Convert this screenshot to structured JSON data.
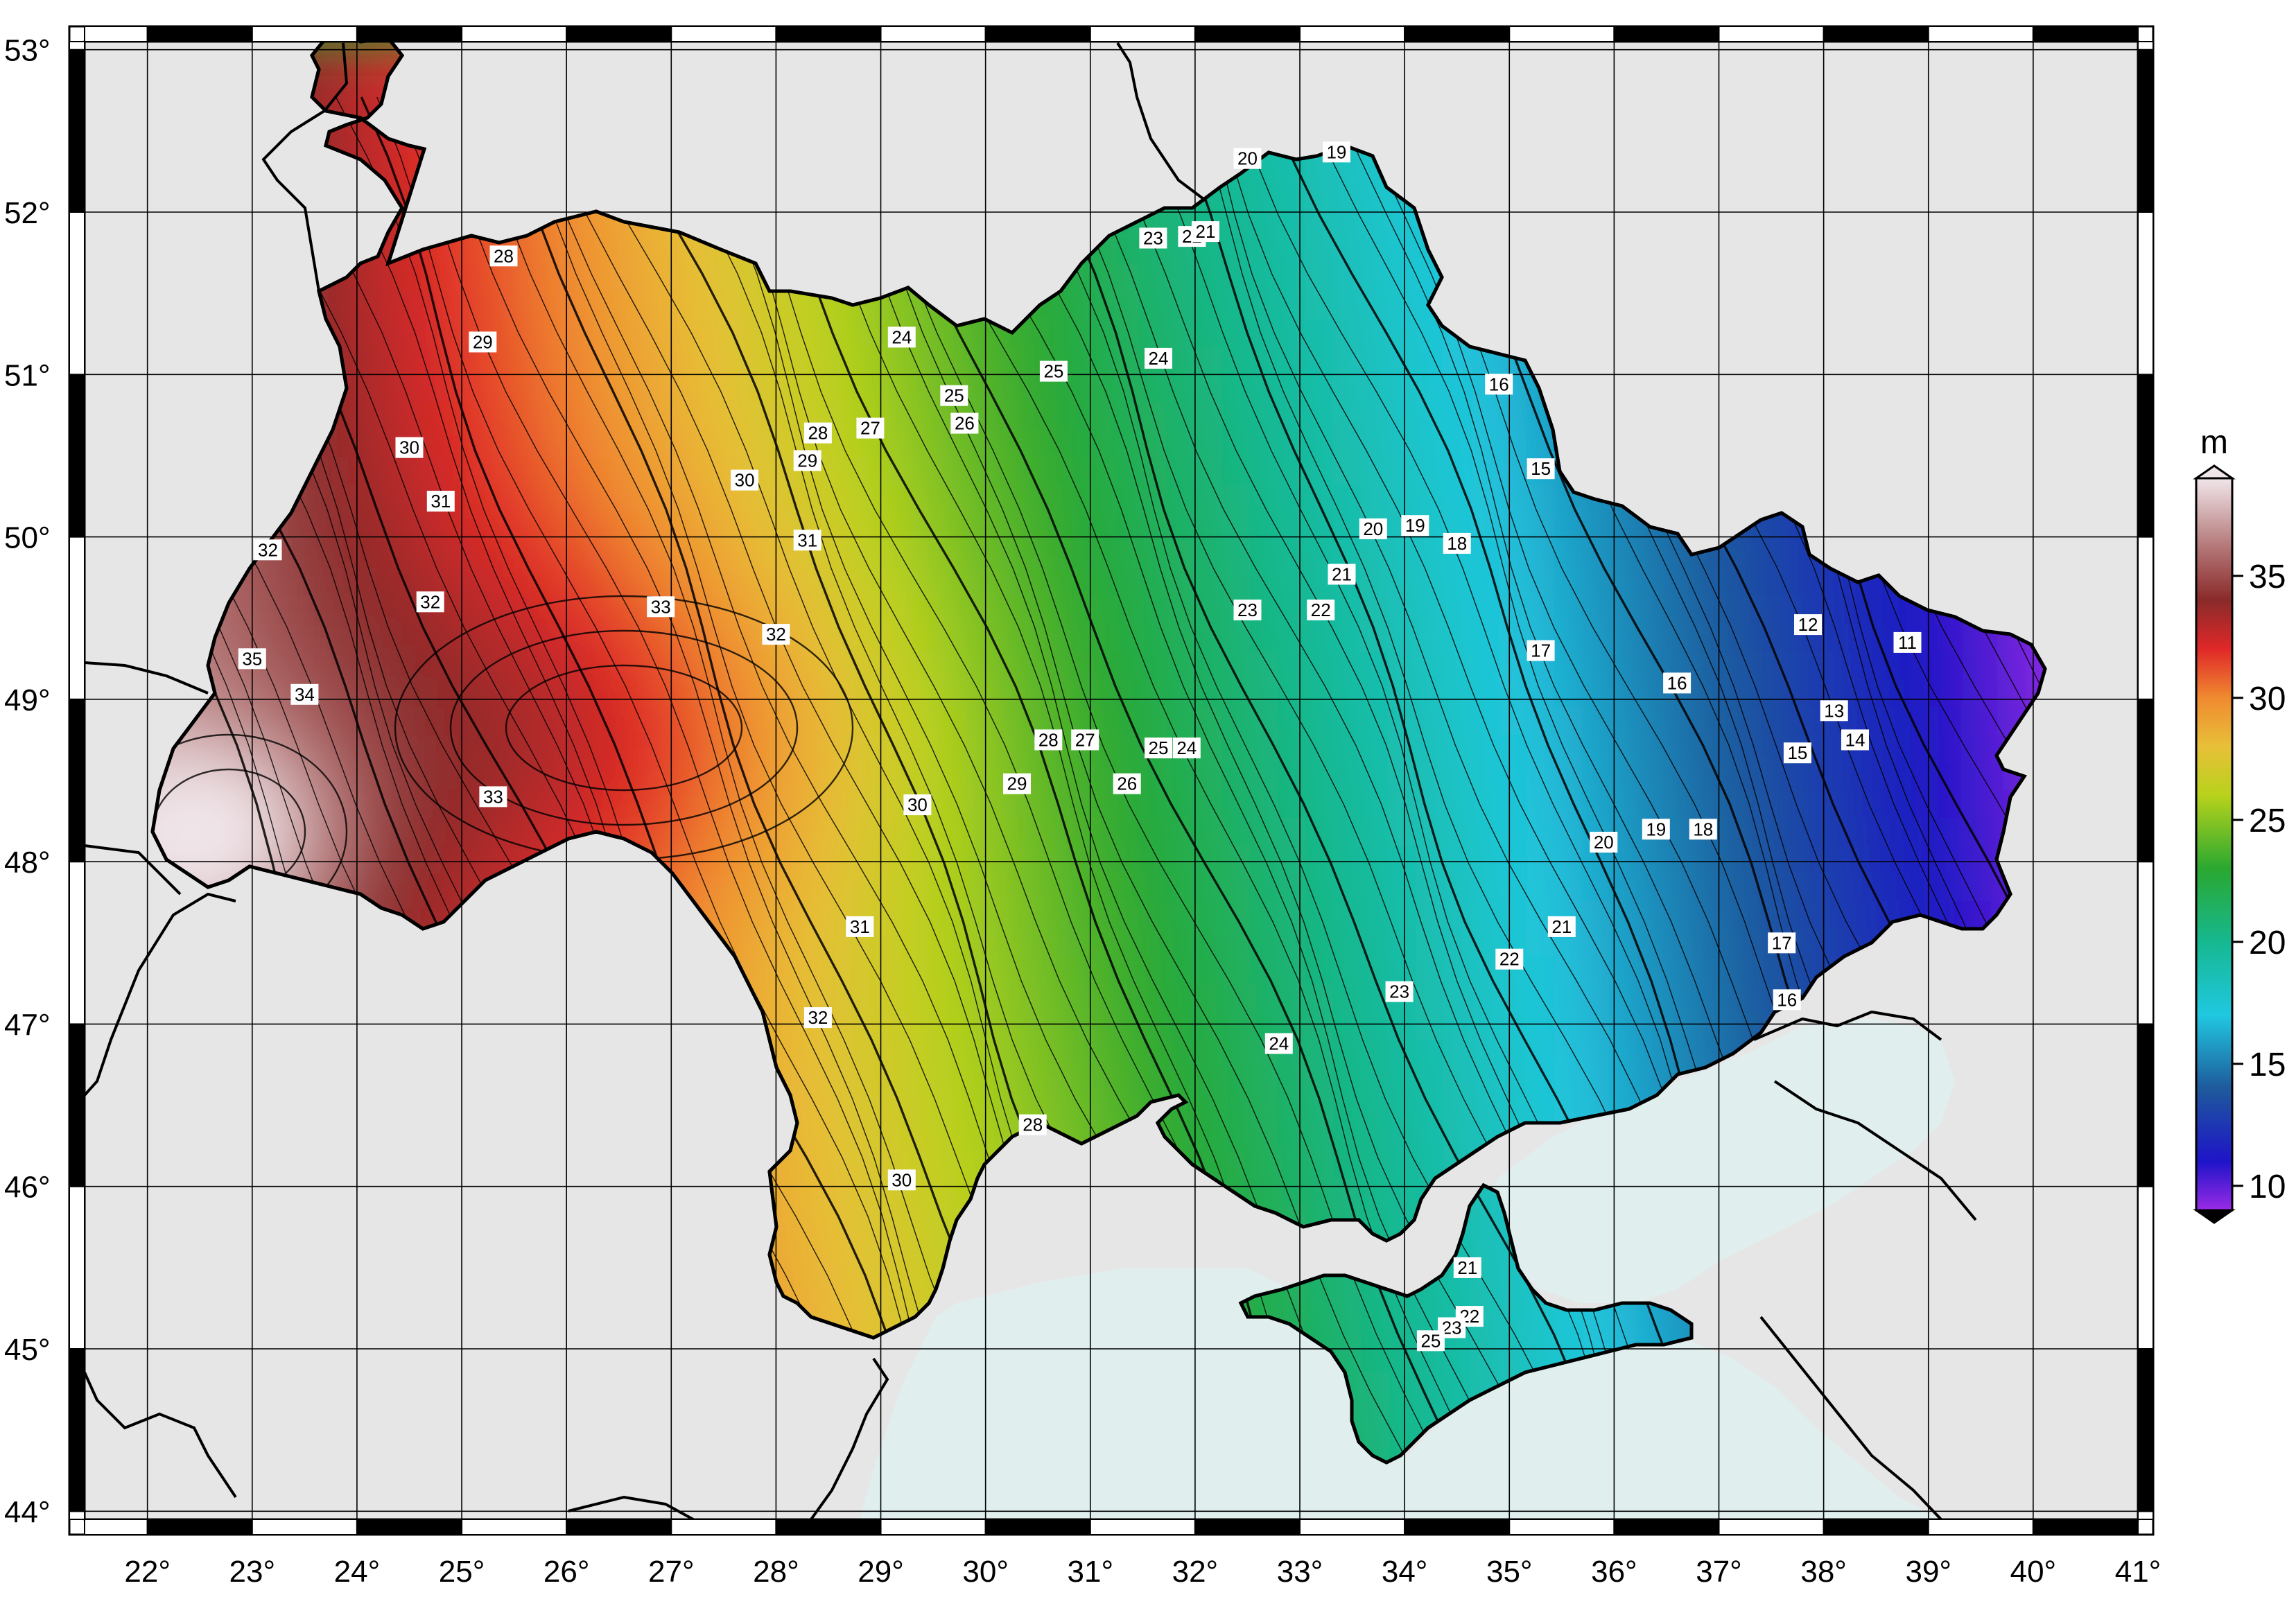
{
  "map": {
    "lon_range": [
      21.4,
      41.0
    ],
    "lat_range": [
      43.95,
      53.05
    ],
    "lon_ticks": [
      22,
      23,
      24,
      25,
      26,
      27,
      28,
      29,
      30,
      31,
      32,
      33,
      34,
      35,
      36,
      37,
      38,
      39,
      40,
      41
    ],
    "lat_ticks": [
      44,
      45,
      46,
      47,
      48,
      49,
      50,
      51,
      52,
      53
    ],
    "lon_tick_labels": [
      "22°",
      "23°",
      "24°",
      "25°",
      "26°",
      "27°",
      "28°",
      "29°",
      "30°",
      "31°",
      "32°",
      "33°",
      "34°",
      "35°",
      "36°",
      "37°",
      "38°",
      "39°",
      "40°",
      "41°"
    ],
    "lat_tick_labels": [
      "44°",
      "45°",
      "46°",
      "47°",
      "48°",
      "49°",
      "50°",
      "51°",
      "52°",
      "53°"
    ],
    "grid": true,
    "land_color": "#e6e6e6",
    "sea_color": "#e0eeee",
    "contour_labels": [
      {
        "text": "28",
        "lon": 25.4,
        "lat": 51.73
      },
      {
        "text": "29",
        "lon": 25.2,
        "lat": 51.2
      },
      {
        "text": "30",
        "lon": 24.5,
        "lat": 50.55
      },
      {
        "text": "31",
        "lon": 24.8,
        "lat": 50.22
      },
      {
        "text": "32",
        "lon": 23.15,
        "lat": 49.92
      },
      {
        "text": "32",
        "lon": 24.7,
        "lat": 49.6
      },
      {
        "text": "35",
        "lon": 23.0,
        "lat": 49.25
      },
      {
        "text": "34",
        "lon": 23.5,
        "lat": 49.03
      },
      {
        "text": "33",
        "lon": 25.3,
        "lat": 48.4
      },
      {
        "text": "33",
        "lon": 26.9,
        "lat": 49.57
      },
      {
        "text": "32",
        "lon": 28.0,
        "lat": 49.4
      },
      {
        "text": "31",
        "lon": 28.3,
        "lat": 49.98
      },
      {
        "text": "30",
        "lon": 27.7,
        "lat": 50.35
      },
      {
        "text": "29",
        "lon": 28.3,
        "lat": 50.47
      },
      {
        "text": "28",
        "lon": 28.4,
        "lat": 50.64
      },
      {
        "text": "27",
        "lon": 28.9,
        "lat": 50.67
      },
      {
        "text": "26",
        "lon": 29.8,
        "lat": 50.7
      },
      {
        "text": "25",
        "lon": 29.7,
        "lat": 50.87
      },
      {
        "text": "24",
        "lon": 29.2,
        "lat": 51.23
      },
      {
        "text": "25",
        "lon": 30.65,
        "lat": 51.02
      },
      {
        "text": "24",
        "lon": 31.65,
        "lat": 51.1
      },
      {
        "text": "23",
        "lon": 31.6,
        "lat": 51.84
      },
      {
        "text": "22",
        "lon": 31.97,
        "lat": 51.85
      },
      {
        "text": "21",
        "lon": 32.1,
        "lat": 51.88
      },
      {
        "text": "20",
        "lon": 32.5,
        "lat": 52.33
      },
      {
        "text": "19",
        "lon": 33.35,
        "lat": 52.37
      },
      {
        "text": "16",
        "lon": 34.9,
        "lat": 50.94
      },
      {
        "text": "15",
        "lon": 35.3,
        "lat": 50.42
      },
      {
        "text": "20",
        "lon": 33.7,
        "lat": 50.05
      },
      {
        "text": "19",
        "lon": 34.1,
        "lat": 50.07
      },
      {
        "text": "18",
        "lon": 34.5,
        "lat": 49.96
      },
      {
        "text": "21",
        "lon": 33.4,
        "lat": 49.77
      },
      {
        "text": "22",
        "lon": 33.2,
        "lat": 49.55
      },
      {
        "text": "23",
        "lon": 32.5,
        "lat": 49.55
      },
      {
        "text": "17",
        "lon": 35.3,
        "lat": 49.3
      },
      {
        "text": "16",
        "lon": 36.6,
        "lat": 49.1
      },
      {
        "text": "12",
        "lon": 37.85,
        "lat": 49.46
      },
      {
        "text": "11",
        "lon": 38.8,
        "lat": 49.35
      },
      {
        "text": "13",
        "lon": 38.1,
        "lat": 48.93
      },
      {
        "text": "14",
        "lon": 38.3,
        "lat": 48.75
      },
      {
        "text": "15",
        "lon": 37.75,
        "lat": 48.67
      },
      {
        "text": "28",
        "lon": 30.6,
        "lat": 48.75
      },
      {
        "text": "27",
        "lon": 30.95,
        "lat": 48.75
      },
      {
        "text": "26",
        "lon": 31.35,
        "lat": 48.48
      },
      {
        "text": "25",
        "lon": 31.65,
        "lat": 48.7
      },
      {
        "text": "24",
        "lon": 31.92,
        "lat": 48.7
      },
      {
        "text": "29",
        "lon": 30.3,
        "lat": 48.48
      },
      {
        "text": "30",
        "lon": 29.35,
        "lat": 48.35
      },
      {
        "text": "19",
        "lon": 36.4,
        "lat": 48.2
      },
      {
        "text": "18",
        "lon": 36.85,
        "lat": 48.2
      },
      {
        "text": "20",
        "lon": 35.9,
        "lat": 48.12
      },
      {
        "text": "21",
        "lon": 35.5,
        "lat": 47.6
      },
      {
        "text": "22",
        "lon": 35.0,
        "lat": 47.4
      },
      {
        "text": "23",
        "lon": 33.95,
        "lat": 47.2
      },
      {
        "text": "17",
        "lon": 37.6,
        "lat": 47.5
      },
      {
        "text": "16",
        "lon": 37.65,
        "lat": 47.15
      },
      {
        "text": "24",
        "lon": 32.8,
        "lat": 46.88
      },
      {
        "text": "31",
        "lon": 28.8,
        "lat": 47.6
      },
      {
        "text": "32",
        "lon": 28.4,
        "lat": 47.04
      },
      {
        "text": "28",
        "lon": 30.45,
        "lat": 46.38
      },
      {
        "text": "30",
        "lon": 29.2,
        "lat": 46.04
      },
      {
        "text": "21",
        "lon": 34.6,
        "lat": 45.5
      },
      {
        "text": "22",
        "lon": 34.62,
        "lat": 45.2
      },
      {
        "text": "23",
        "lon": 34.45,
        "lat": 45.13
      },
      {
        "text": "25",
        "lon": 34.25,
        "lat": 45.05
      }
    ]
  },
  "colorbar": {
    "unit": "m",
    "tick_values": [
      10,
      15,
      20,
      25,
      30,
      35
    ],
    "tick_labels": [
      "10",
      "15",
      "20",
      "25",
      "30",
      "35"
    ],
    "range": [
      9,
      39
    ],
    "stops": [
      {
        "v": 9,
        "color": "#9a2be6"
      },
      {
        "v": 11,
        "color": "#1e14c8"
      },
      {
        "v": 14,
        "color": "#1e5a9c"
      },
      {
        "v": 17,
        "color": "#20c8e0"
      },
      {
        "v": 20,
        "color": "#16b890"
      },
      {
        "v": 23,
        "color": "#2aa830"
      },
      {
        "v": 26,
        "color": "#b8d21c"
      },
      {
        "v": 28,
        "color": "#e8c038"
      },
      {
        "v": 30,
        "color": "#f08a30"
      },
      {
        "v": 32,
        "color": "#e02828"
      },
      {
        "v": 34,
        "color": "#8a2a2a"
      },
      {
        "v": 36,
        "color": "#b07070"
      },
      {
        "v": 39,
        "color": "#f0e6ea"
      }
    ]
  }
}
